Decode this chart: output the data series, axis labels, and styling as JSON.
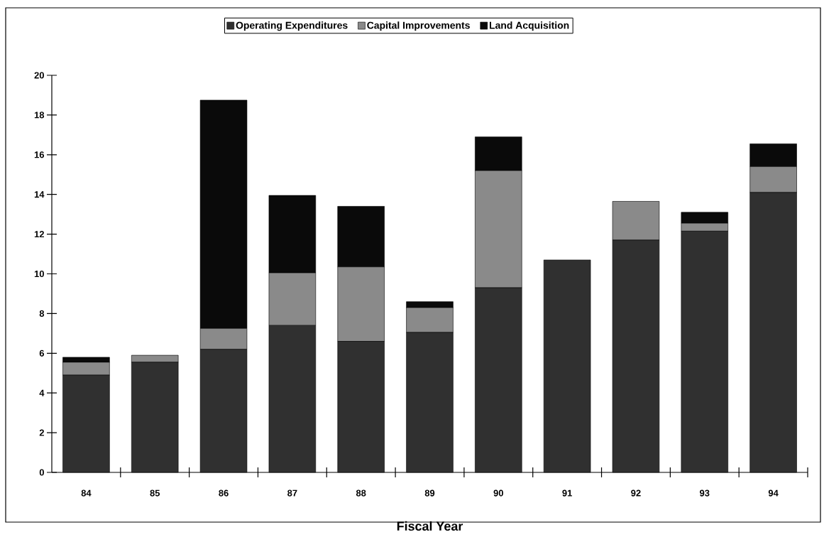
{
  "chart_data": {
    "type": "bar",
    "stacked": true,
    "xlabel": "Fiscal Year",
    "categories": [
      "84",
      "85",
      "86",
      "87",
      "88",
      "89",
      "90",
      "91",
      "92",
      "93",
      "94"
    ],
    "series": [
      {
        "name": "Operating Expenditures",
        "color": "#303030",
        "values": [
          4.9,
          5.55,
          6.2,
          7.4,
          6.6,
          7.05,
          9.3,
          10.7,
          11.7,
          12.15,
          14.1
        ]
      },
      {
        "name": "Capital Improvements",
        "color": "#8a8a8a",
        "values": [
          0.65,
          0.35,
          1.05,
          2.65,
          3.75,
          1.25,
          5.9,
          0,
          1.95,
          0.4,
          1.3
        ]
      },
      {
        "name": "Land Acquisition",
        "color": "#0a0a0a",
        "values": [
          0.25,
          0,
          11.5,
          3.9,
          3.05,
          0.3,
          1.7,
          0,
          0,
          0.55,
          1.15
        ]
      }
    ],
    "ylim": [
      0,
      20
    ],
    "yticks": [
      0,
      2,
      4,
      6,
      8,
      10,
      12,
      14,
      16,
      18,
      20
    ],
    "legend": "top"
  }
}
